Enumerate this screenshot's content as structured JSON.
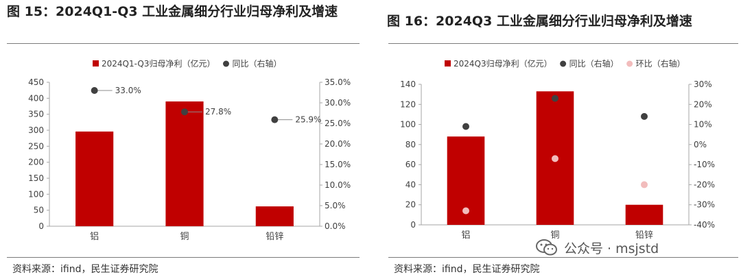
{
  "left": {
    "title": "图 15：2024Q1-Q3 工业金属细分行业归母净利及增速",
    "source": "资料来源：ifind，民生证券研究院"
  },
  "right": {
    "title": "图 16：2024Q3 工业金属细分行业归母净利及增速",
    "source": "资料来源：ifind，民生证券研究院"
  },
  "watermark": {
    "text": "公众号 · msjstd",
    "icon": "wechat-icon"
  },
  "colors": {
    "bar": "#c00000",
    "yoy": "#404040",
    "qoq": "#f2bcbc",
    "axis": "#a6a6a6",
    "text": "#404040"
  },
  "chart_data": [
    {
      "type": "bar",
      "categories": [
        "铝",
        "铜",
        "铅锌"
      ],
      "series": [
        {
          "name": "2024Q1-Q3归母净利（亿元）",
          "kind": "bar",
          "axis": "left",
          "values": [
            296,
            390,
            62
          ]
        },
        {
          "name": "同比（右轴）",
          "kind": "scatter",
          "axis": "right",
          "values": [
            33.0,
            27.8,
            25.9
          ],
          "labels": [
            "33.0%",
            "27.8%",
            "25.9%"
          ]
        }
      ],
      "y_left": {
        "min": 0,
        "max": 450,
        "step": 50,
        "ticks": [
          "0",
          "50",
          "100",
          "150",
          "200",
          "250",
          "300",
          "350",
          "400",
          "450"
        ]
      },
      "y_right": {
        "min": 0,
        "max": 35,
        "step": 5,
        "ticks": [
          "0.0%",
          "5.0%",
          "10.0%",
          "15.0%",
          "20.0%",
          "25.0%",
          "30.0%",
          "35.0%"
        ]
      },
      "legend": "top-center",
      "grid": false
    },
    {
      "type": "bar",
      "categories": [
        "铝",
        "铜",
        "铅锌"
      ],
      "series": [
        {
          "name": "2024Q3归母净利（亿元）",
          "kind": "bar",
          "axis": "left",
          "values": [
            88,
            133,
            20
          ]
        },
        {
          "name": "同比（右轴）",
          "kind": "scatter",
          "axis": "right",
          "values": [
            9,
            23,
            14
          ]
        },
        {
          "name": "环比（右轴）",
          "kind": "scatter",
          "axis": "right",
          "values": [
            -33,
            -7,
            -20
          ]
        }
      ],
      "y_left": {
        "min": 0,
        "max": 140,
        "step": 20,
        "ticks": [
          "0",
          "20",
          "40",
          "60",
          "80",
          "100",
          "120",
          "140"
        ]
      },
      "y_right": {
        "min": -40,
        "max": 30,
        "step": 10,
        "ticks": [
          "-40%",
          "-30%",
          "-20%",
          "-10%",
          "0%",
          "10%",
          "20%",
          "30%"
        ]
      },
      "legend": "top-center",
      "grid": false
    }
  ]
}
